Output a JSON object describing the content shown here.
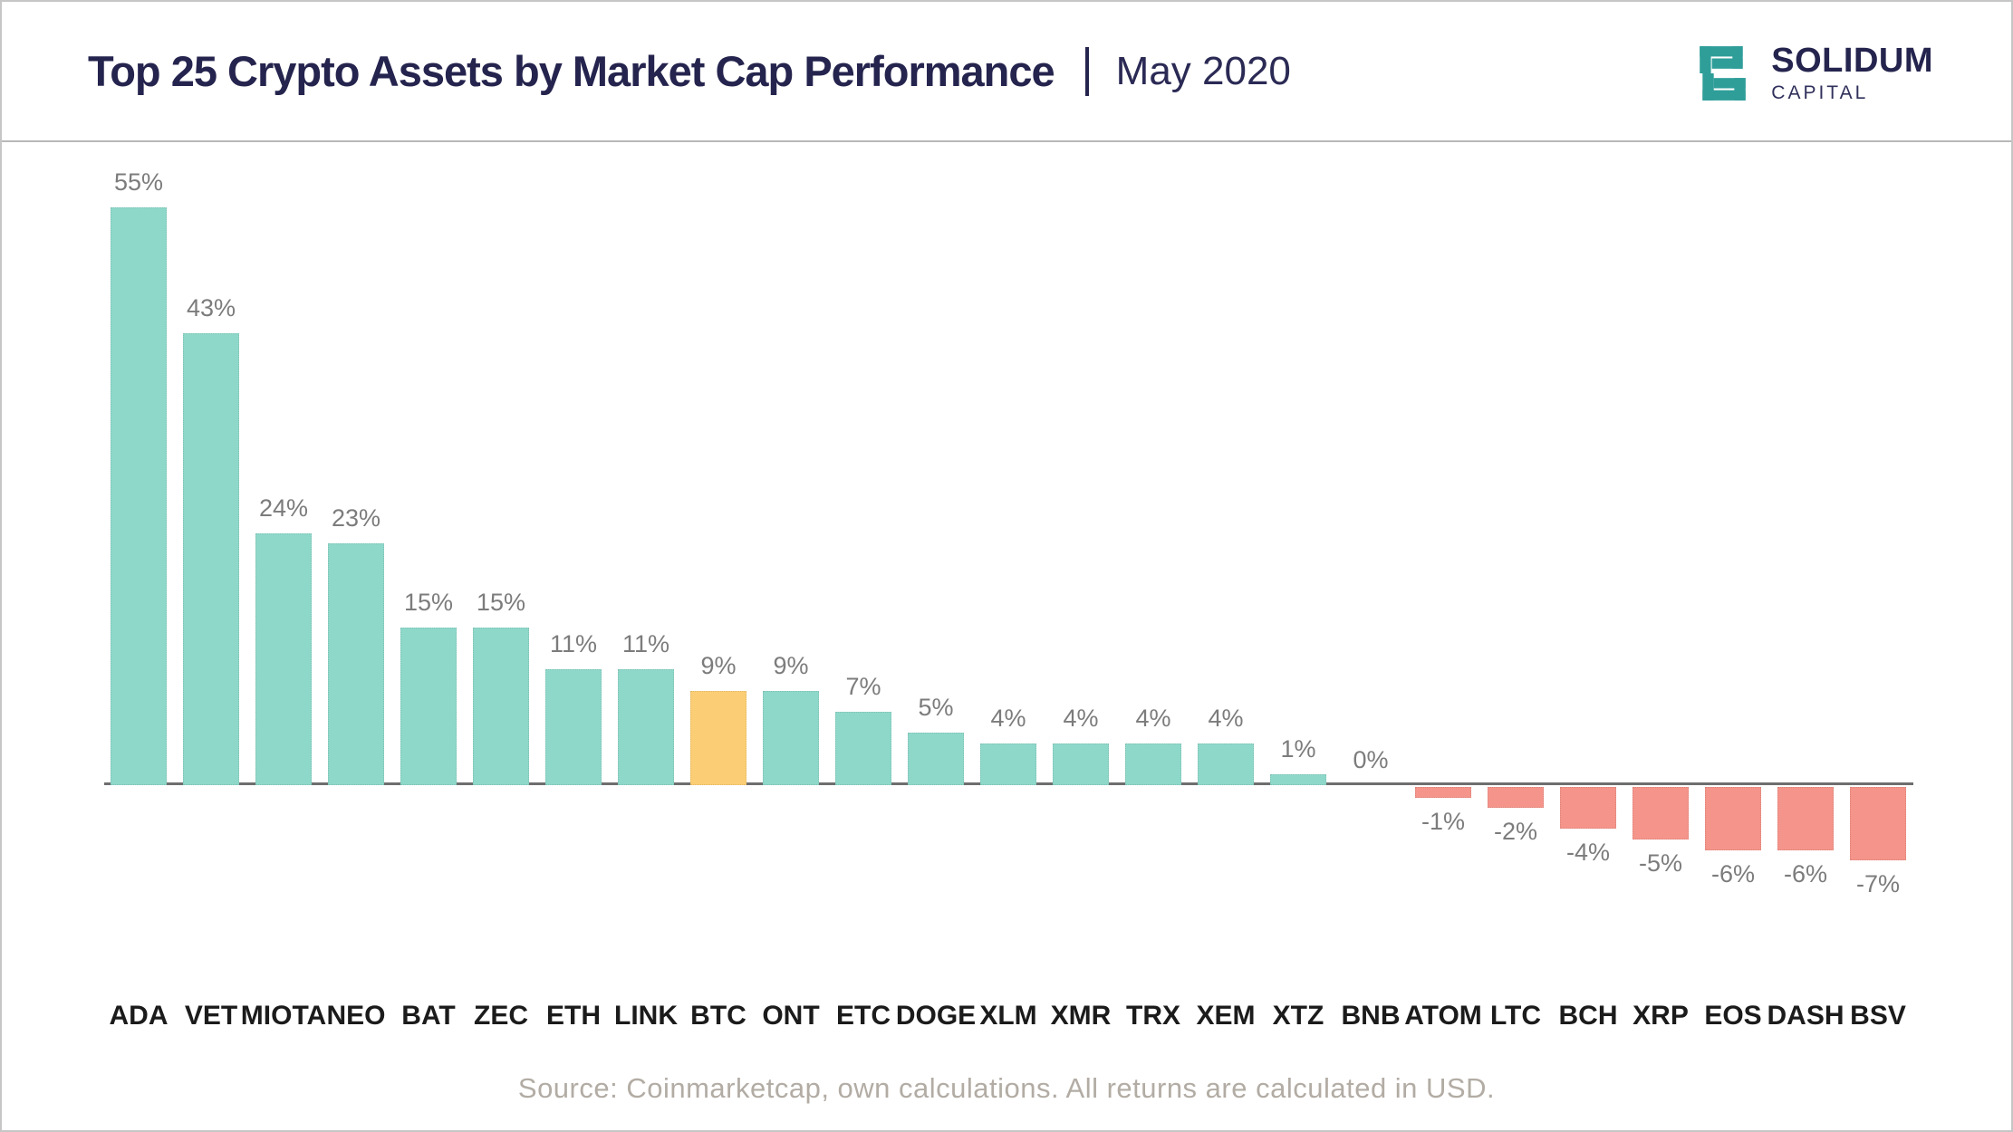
{
  "header": {
    "title": "Top 25 Crypto Assets by Market Cap Performance",
    "separator": "|",
    "period": "May 2020",
    "logo": {
      "name": "SOLIDUM",
      "sub": "CAPITAL",
      "icon": "solidum-s-icon",
      "icon_color": "#2f9e99"
    }
  },
  "chart_data": {
    "type": "bar",
    "title": "Top 25 Crypto Assets by Market Cap Performance",
    "subtitle": "May 2020",
    "categories": [
      "ADA",
      "VET",
      "MIOTA",
      "NEO",
      "BAT",
      "ZEC",
      "ETH",
      "LINK",
      "BTC",
      "ONT",
      "ETC",
      "DOGE",
      "XLM",
      "XMR",
      "TRX",
      "XEM",
      "XTZ",
      "BNB",
      "ATOM",
      "LTC",
      "BCH",
      "XRP",
      "EOS",
      "DASH",
      "BSV"
    ],
    "values": [
      55,
      43,
      24,
      23,
      15,
      15,
      11,
      11,
      9,
      9,
      7,
      5,
      4,
      4,
      4,
      4,
      1,
      0,
      -1,
      -2,
      -4,
      -5,
      -6,
      -6,
      -7
    ],
    "value_labels": [
      "55%",
      "43%",
      "24%",
      "23%",
      "15%",
      "15%",
      "11%",
      "11%",
      "9%",
      "9%",
      "7%",
      "5%",
      "4%",
      "4%",
      "4%",
      "4%",
      "1%",
      "0%",
      "-1%",
      "-2%",
      "-4%",
      "-5%",
      "-6%",
      "-6%",
      "-7%"
    ],
    "unit": "%",
    "highlight_category": "BTC",
    "colors": {
      "positive": "#8ed8ca",
      "highlight": "#fbce75",
      "negative": "#f5948a",
      "axis": "#6e6e6e",
      "value_label": "#7c7c7c",
      "category_label": "#1b1b1b"
    },
    "ylim": [
      -10,
      60
    ],
    "grid": false,
    "legend": false,
    "baseline": 0
  },
  "footer": {
    "source": "Source: Coinmarketcap, own calculations. All returns are calculated in USD."
  }
}
